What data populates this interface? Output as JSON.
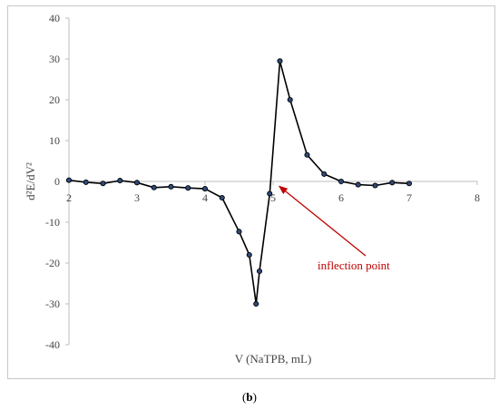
{
  "chart_data": {
    "type": "line",
    "xlabel": "V (NaTPB, mL)",
    "ylabel": "d²E/dV²",
    "xlim": [
      2,
      8
    ],
    "ylim": [
      -40,
      40
    ],
    "xticks": [
      2,
      3,
      4,
      5,
      6,
      7,
      8
    ],
    "yticks": [
      40,
      30,
      20,
      10,
      0,
      -10,
      -20,
      -30,
      -40
    ],
    "grid": false,
    "series": [
      {
        "x": [
          2.0,
          2.25,
          2.5,
          2.75,
          3.0,
          3.25,
          3.5,
          3.75,
          4.0,
          4.25,
          4.5,
          4.65,
          4.75,
          4.8,
          4.95,
          5.1,
          5.25,
          5.5,
          5.75,
          6.0,
          6.25,
          6.5,
          6.75,
          7.0
        ],
        "y": [
          0.3,
          -0.2,
          -0.5,
          0.2,
          -0.3,
          -1.5,
          -1.3,
          -1.6,
          -1.8,
          -4.0,
          -12.3,
          -18.0,
          -30.0,
          -22.0,
          -3.0,
          29.5,
          20.0,
          6.5,
          1.8,
          0.0,
          -0.8,
          -1.0,
          -0.3,
          -0.5
        ],
        "color": "#000000",
        "marker_color": "#2f4a7a"
      }
    ],
    "annotations": [
      {
        "text": "inflection point",
        "arrow_to": [
          5.05,
          -0.5
        ],
        "color": "#c00000"
      }
    ]
  },
  "figure": {
    "panel_label_prefix": "(",
    "panel_label_bold": "b",
    "panel_label_suffix": ")"
  }
}
